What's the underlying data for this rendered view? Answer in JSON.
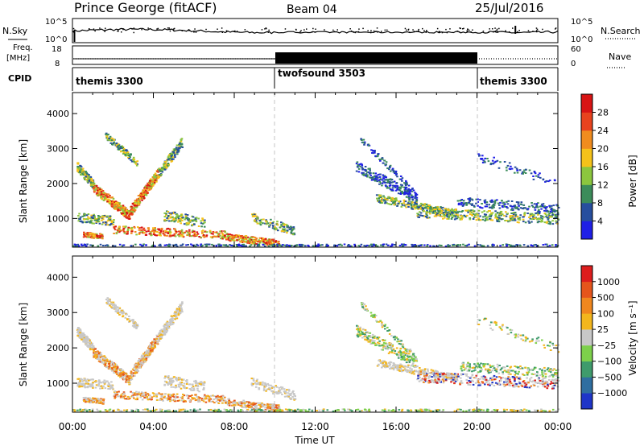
{
  "header": {
    "station": "Prince George (fitACF)",
    "beam": "Beam 04",
    "date": "25/Jul/2016"
  },
  "panel_labels": {
    "nsky": "N.Sky",
    "freq_line1": "Freq.",
    "freq_line2": "[MHz]",
    "cpid": "CPID",
    "nsearch": "N.Search",
    "nave": "Nave"
  },
  "noise_axis": {
    "left_top": "10^5",
    "left_bottom": "10^0",
    "right_top": "10^5",
    "right_bottom": "10^0"
  },
  "freq_axis": {
    "left_top": "18",
    "left_bottom": "8",
    "right_top": "60",
    "right_bottom": "0"
  },
  "cpid_segments": [
    {
      "label": "themis 3300",
      "start_h": 0,
      "end_h": 10
    },
    {
      "label": "twofsound 3503",
      "start_h": 10,
      "end_h": 20
    },
    {
      "label": "themis 3300",
      "start_h": 20,
      "end_h": 24
    }
  ],
  "xaxis": {
    "title": "Time UT",
    "tick_labels": [
      "00:00",
      "04:00",
      "08:00",
      "12:00",
      "16:00",
      "20:00",
      "00:00"
    ],
    "tick_hours": [
      0,
      4,
      8,
      12,
      16,
      20,
      24
    ]
  },
  "yaxis": {
    "title": "Slant Range [km]",
    "tick_labels": [
      "1000",
      "2000",
      "3000",
      "4000"
    ],
    "tick_values": [
      1000,
      2000,
      3000,
      4000
    ],
    "range": [
      180,
      4600
    ]
  },
  "power_colorbar": {
    "title": "Power [dB]",
    "tick_labels": [
      "4",
      "8",
      "12",
      "16",
      "20",
      "24",
      "28"
    ],
    "colors": [
      "#1f1fe6",
      "#274e9e",
      "#3c8c5a",
      "#8cc63e",
      "#f5c21a",
      "#f08c1e",
      "#e8431e",
      "#d81414"
    ]
  },
  "velocity_colorbar": {
    "title": "Velocity [m s⁻¹]",
    "tick_labels": [
      "1000",
      "500",
      "100",
      "25",
      "−25",
      "−100",
      "−500",
      "−1000"
    ],
    "colors": [
      "#1f35c8",
      "#2f6ea0",
      "#3f9b6c",
      "#7dd04b",
      "#c8c8c8",
      "#f3b61d",
      "#f0871e",
      "#e5551c",
      "#dd1d1d"
    ]
  },
  "chart_data": [
    {
      "type": "line",
      "title": "Prince George (fitACF)",
      "ylabel": "N.Sky",
      "note": "sky noise, log scale",
      "yscale": "log",
      "ylim": [
        "10^0",
        "10^5"
      ],
      "xlim": [
        0,
        24
      ]
    },
    {
      "type": "line",
      "ylabel": "Freq. [MHz]",
      "ylim": [
        8,
        18
      ],
      "series": [
        {
          "name": "Freq.",
          "x": [
            0,
            10,
            20,
            24
          ],
          "values": [
            10,
            10,
            10,
            10
          ]
        },
        {
          "name": "Nave",
          "x": [
            0,
            10,
            20,
            24
          ],
          "values": [
            20,
            40,
            20,
            20
          ]
        }
      ]
    },
    {
      "type": "heatmap",
      "title": "Power [dB]",
      "xlabel": "Time UT",
      "ylabel": "Slant Range [km]",
      "xlim": [
        0,
        24
      ],
      "ylim": [
        180,
        4600
      ],
      "colorbar_ticks": [
        4,
        8,
        12,
        16,
        20,
        24,
        28
      ]
    },
    {
      "type": "heatmap",
      "title": "Velocity [m s⁻¹]",
      "xlabel": "Time UT",
      "ylabel": "Slant Range [km]",
      "xlim": [
        0,
        24
      ],
      "ylim": [
        180,
        4600
      ],
      "colorbar_ticks": [
        1000,
        500,
        100,
        25,
        -25,
        -100,
        -500,
        -1000
      ]
    }
  ]
}
